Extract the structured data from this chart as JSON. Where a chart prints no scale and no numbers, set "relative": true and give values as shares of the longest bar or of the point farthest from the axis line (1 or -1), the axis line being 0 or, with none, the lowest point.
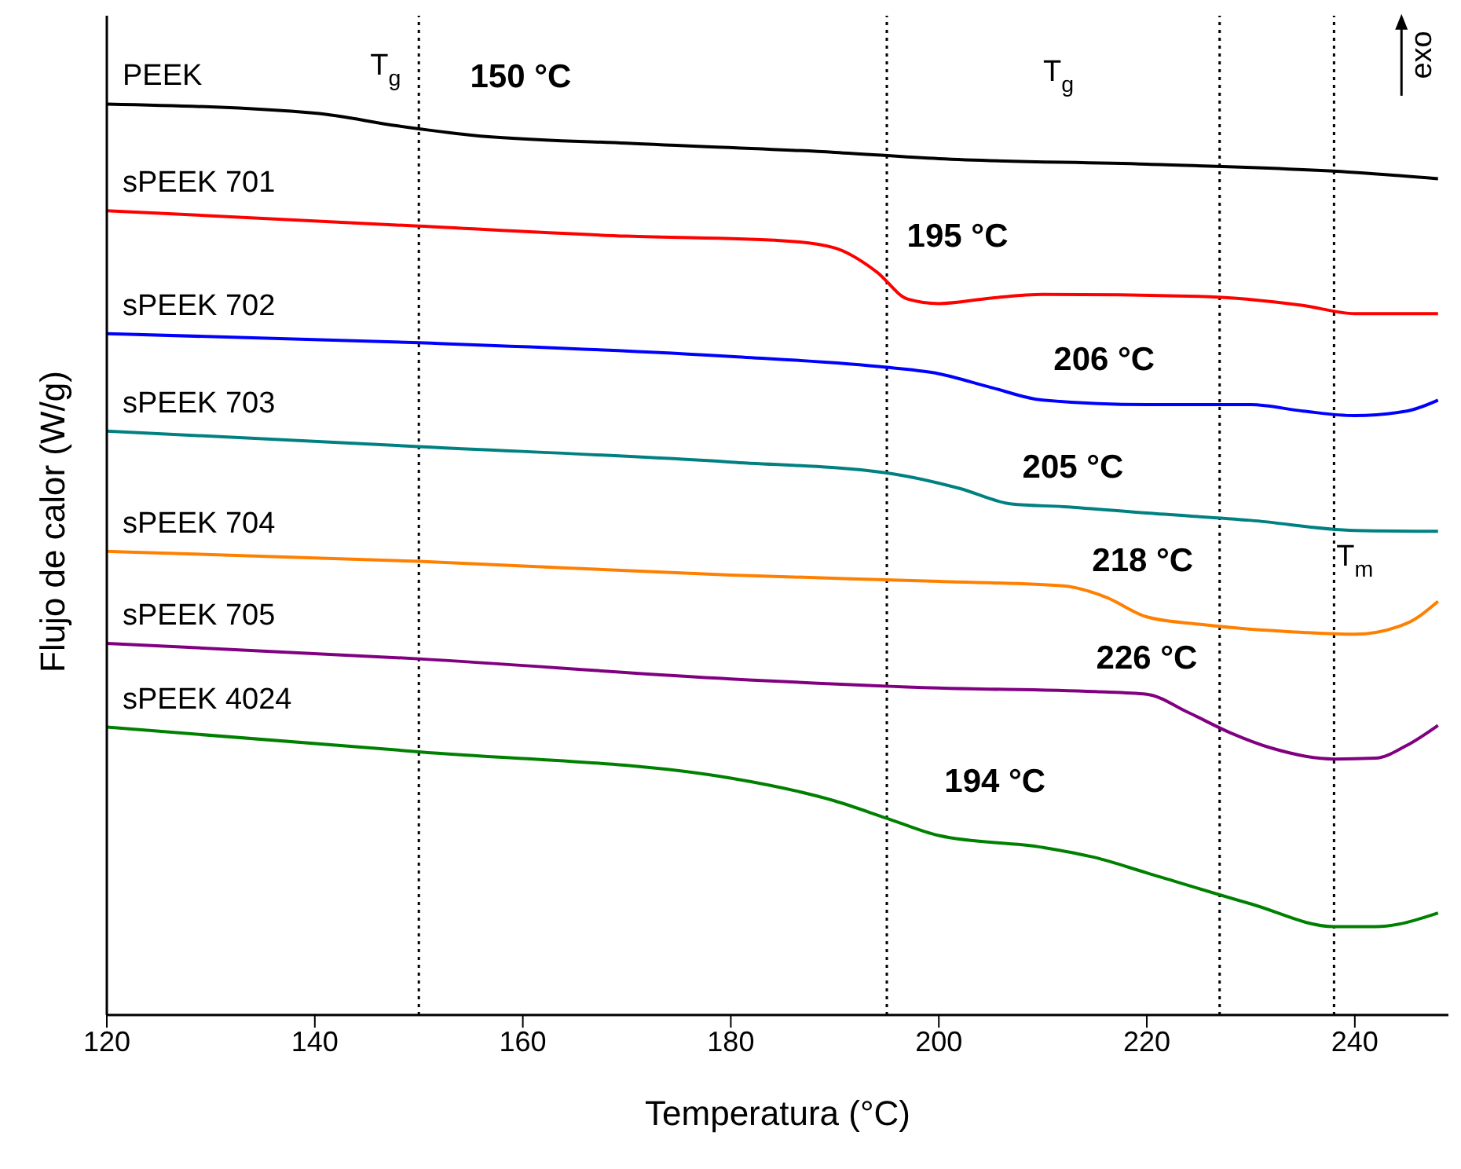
{
  "chart_data": {
    "type": "line",
    "relative": true,
    "xlabel": "Temperatura (°C)",
    "ylabel": "Flujo de calor (W/g)",
    "xlim": [
      120,
      249
    ],
    "xticks": [
      120,
      140,
      160,
      180,
      200,
      220,
      240
    ],
    "legend": false,
    "marker": "none",
    "line_style": "solid",
    "series": [
      {
        "name": "PEEK",
        "color": "#000000",
        "x": [
          120,
          140,
          148,
          155,
          170,
          190,
          200,
          220,
          240,
          248
        ],
        "values": [
          1.0,
          0.99,
          0.976,
          0.966,
          0.957,
          0.947,
          0.94,
          0.934,
          0.925,
          0.918
        ]
      },
      {
        "name": "sPEEK 701",
        "color": "#ff0000",
        "x": [
          120,
          150,
          170,
          185,
          190,
          194,
          197,
          200,
          205,
          210,
          225,
          235,
          240,
          248
        ],
        "values": [
          0.883,
          0.866,
          0.855,
          0.85,
          0.842,
          0.816,
          0.786,
          0.781,
          0.787,
          0.791,
          0.789,
          0.779,
          0.77,
          0.77
        ]
      },
      {
        "name": "sPEEK 702",
        "color": "#0000ff",
        "x": [
          120,
          150,
          180,
          195,
          200,
          205,
          210,
          220,
          230,
          235,
          240,
          245,
          248
        ],
        "values": [
          0.748,
          0.738,
          0.723,
          0.711,
          0.704,
          0.689,
          0.675,
          0.67,
          0.67,
          0.663,
          0.658,
          0.663,
          0.675
        ]
      },
      {
        "name": "sPEEK 703",
        "color": "#008080",
        "x": [
          120,
          150,
          180,
          195,
          202,
          207,
          212,
          220,
          230,
          240,
          248
        ],
        "values": [
          0.641,
          0.624,
          0.607,
          0.595,
          0.578,
          0.561,
          0.558,
          0.551,
          0.543,
          0.532,
          0.531
        ]
      },
      {
        "name": "sPEEK 704",
        "color": "#ff8000",
        "x": [
          120,
          150,
          180,
          200,
          212,
          216,
          220,
          225,
          235,
          240,
          245,
          248
        ],
        "values": [
          0.509,
          0.498,
          0.483,
          0.476,
          0.471,
          0.459,
          0.437,
          0.429,
          0.42,
          0.418,
          0.43,
          0.454
        ]
      },
      {
        "name": "sPEEK 705",
        "color": "#800080",
        "x": [
          120,
          150,
          180,
          200,
          215,
          220,
          224,
          228,
          232,
          238,
          242,
          245,
          248
        ],
        "values": [
          0.408,
          0.391,
          0.369,
          0.359,
          0.355,
          0.352,
          0.332,
          0.31,
          0.293,
          0.281,
          0.282,
          0.296,
          0.318
        ]
      },
      {
        "name": "sPEEK 4024",
        "color": "#008000",
        "x": [
          120,
          150,
          180,
          190,
          195,
          200,
          210,
          215,
          220,
          230,
          238,
          242,
          248
        ],
        "values": [
          0.316,
          0.289,
          0.26,
          0.235,
          0.216,
          0.197,
          0.184,
          0.173,
          0.156,
          0.122,
          0.097,
          0.097,
          0.112
        ]
      }
    ],
    "ref_lines": [
      {
        "axis": "x",
        "value": 150,
        "color": "#000000",
        "line_style": "dotted"
      },
      {
        "axis": "x",
        "value": 195,
        "color": "#000000",
        "line_style": "dotted"
      },
      {
        "axis": "x",
        "value": 227,
        "color": "#000000",
        "line_style": "dotted"
      },
      {
        "axis": "x",
        "value": 238,
        "color": "#000000",
        "line_style": "dotted"
      }
    ],
    "annotations": [
      "T$_{g}$",
      "150 °C",
      "T$_{g}$",
      "195 °C",
      "206 °C",
      "205 °C",
      "218 °C",
      "T$_{m}$",
      "226 °C",
      "194 °C",
      "exo"
    ]
  }
}
